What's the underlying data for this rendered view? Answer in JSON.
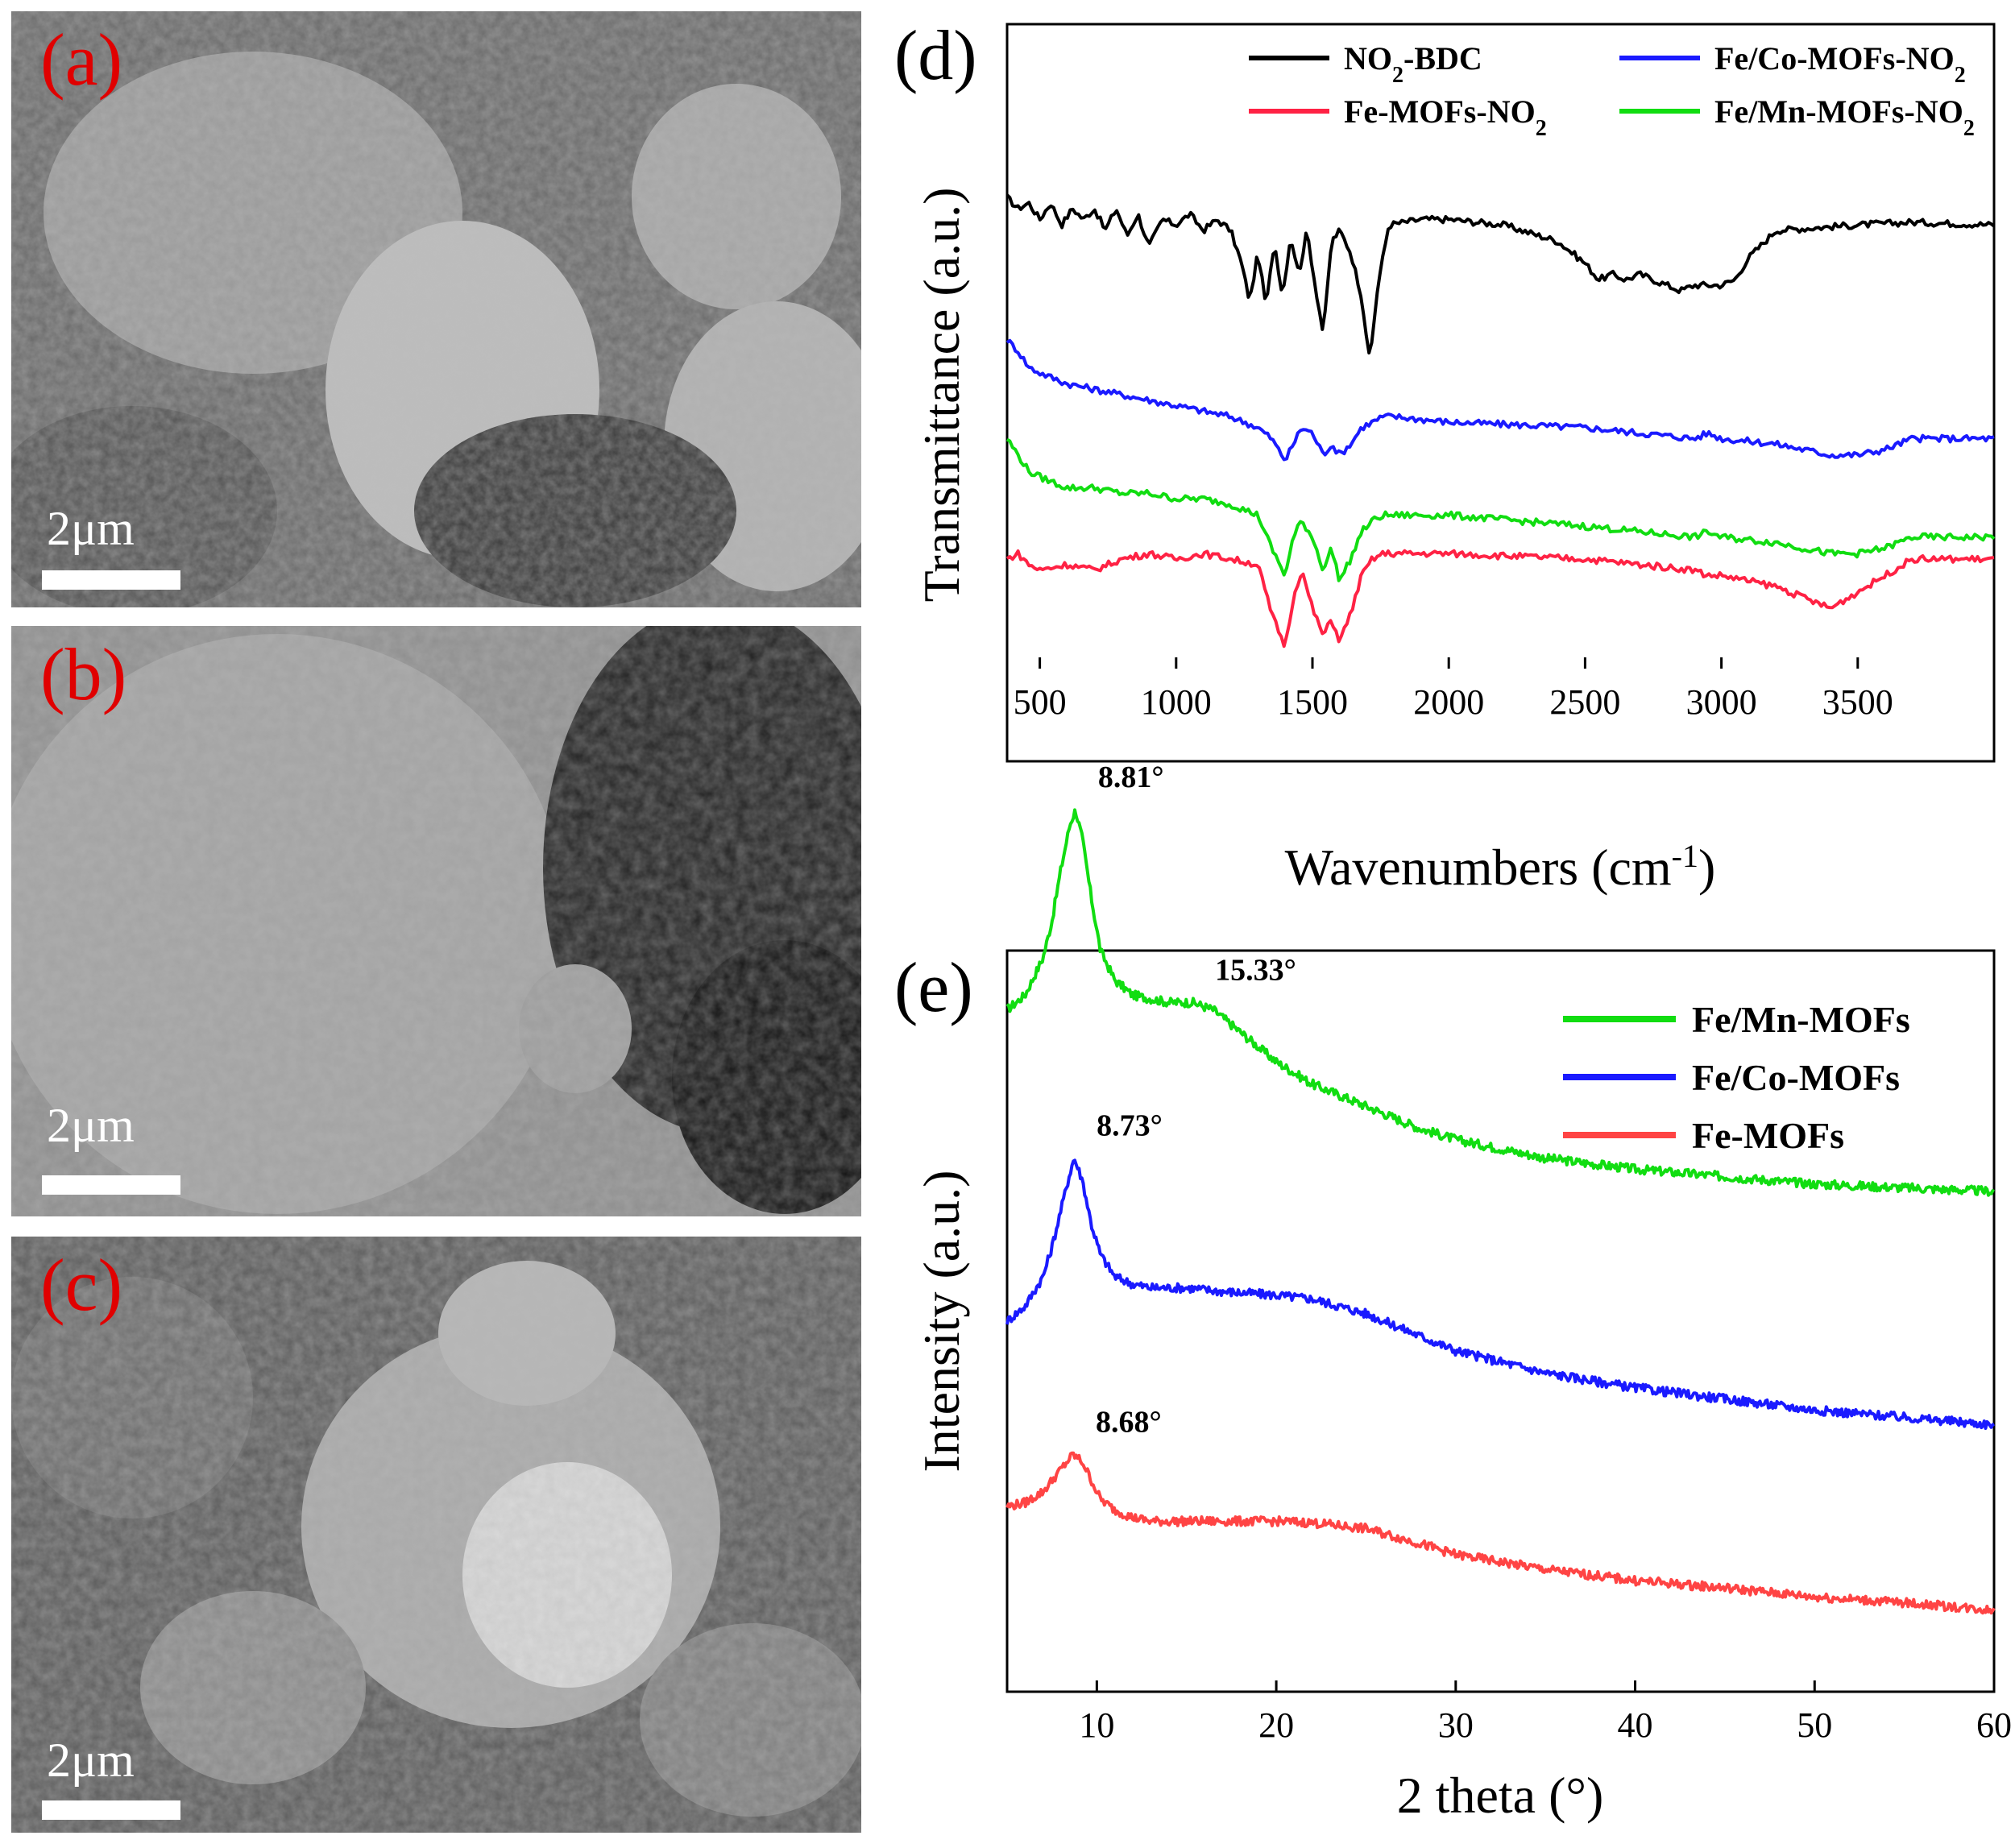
{
  "sem_panels": [
    {
      "label": "(a)",
      "scale_text": "2μm"
    },
    {
      "label": "(b)",
      "scale_text": "2μm"
    },
    {
      "label": "(c)",
      "scale_text": "2μm"
    }
  ],
  "colors": {
    "black": "#000000",
    "blue": "#1a1aff",
    "green": "#11dd11",
    "red": "#ff2244",
    "red_xrd": "#ff4444",
    "label_red": "#e00000"
  },
  "chart_data": [
    {
      "panel_label": "(d)",
      "type": "line",
      "xlabel": "Wavenumbers (cm-1)",
      "ylabel": "Transmittance (a.u.)",
      "xlim": [
        380,
        4000
      ],
      "xticks": [
        500,
        1000,
        1500,
        2000,
        2500,
        3000,
        3500
      ],
      "xtick_labels": [
        "500",
        "1000",
        "1500",
        "2000",
        "2500",
        "3000",
        "3500"
      ],
      "y_ticks_shown": false,
      "legend": [
        {
          "text": "NO2-BDC",
          "parts": [
            "NO",
            "2",
            "-BDC"
          ],
          "color": "#000000"
        },
        {
          "text": "Fe/Co-MOFs-NO2",
          "parts": [
            "Fe/Co-MOFs-NO",
            "2",
            ""
          ],
          "color": "#1a1aff"
        },
        {
          "text": "Fe-MOFs-NO2",
          "parts": [
            "Fe-MOFs-NO",
            "2",
            ""
          ],
          "color": "#ff2244"
        },
        {
          "text": "Fe/Mn-MOFs-NO2",
          "parts": [
            "Fe/Mn-MOFs-NO",
            "2",
            ""
          ],
          "color": "#11dd11"
        }
      ],
      "legend_position": "top",
      "series": [
        {
          "name": "NO2-BDC",
          "color": "#000000",
          "baseline": 0.86,
          "x": [
            380,
            420,
            460,
            500,
            540,
            580,
            620,
            660,
            700,
            740,
            780,
            820,
            860,
            900,
            950,
            1000,
            1050,
            1100,
            1150,
            1200,
            1240,
            1270,
            1300,
            1330,
            1360,
            1390,
            1420,
            1450,
            1480,
            1510,
            1540,
            1570,
            1600,
            1640,
            1680,
            1710,
            1740,
            1780,
            1900,
            2000,
            2200,
            2400,
            2500,
            2550,
            2600,
            2650,
            2700,
            2750,
            2800,
            2850,
            2900,
            3000,
            3050,
            3100,
            3200,
            3500,
            3700,
            4000
          ],
          "y": [
            0.86,
            0.84,
            0.85,
            0.82,
            0.85,
            0.81,
            0.84,
            0.82,
            0.84,
            0.8,
            0.84,
            0.79,
            0.83,
            0.77,
            0.82,
            0.81,
            0.83,
            0.8,
            0.82,
            0.8,
            0.74,
            0.67,
            0.76,
            0.66,
            0.78,
            0.68,
            0.79,
            0.72,
            0.8,
            0.7,
            0.61,
            0.78,
            0.8,
            0.76,
            0.68,
            0.56,
            0.7,
            0.81,
            0.82,
            0.82,
            0.81,
            0.78,
            0.74,
            0.71,
            0.72,
            0.71,
            0.72,
            0.71,
            0.7,
            0.69,
            0.7,
            0.7,
            0.71,
            0.75,
            0.8,
            0.81,
            0.815,
            0.81
          ]
        },
        {
          "name": "Fe/Co-MOFs-NO2",
          "color": "#1a1aff",
          "x": [
            380,
            420,
            460,
            500,
            600,
            700,
            800,
            900,
            1000,
            1100,
            1200,
            1300,
            1350,
            1400,
            1430,
            1460,
            1500,
            1540,
            1570,
            1600,
            1640,
            1680,
            1720,
            1760,
            1800,
            2000,
            2500,
            2900,
            2950,
            3000,
            3200,
            3400,
            3500,
            3600,
            3700,
            4000
          ],
          "y": [
            0.6,
            0.58,
            0.55,
            0.54,
            0.52,
            0.51,
            0.5,
            0.49,
            0.48,
            0.47,
            0.46,
            0.44,
            0.42,
            0.38,
            0.41,
            0.44,
            0.43,
            0.39,
            0.41,
            0.39,
            0.41,
            0.44,
            0.45,
            0.46,
            0.46,
            0.45,
            0.44,
            0.42,
            0.43,
            0.42,
            0.41,
            0.39,
            0.39,
            0.4,
            0.42,
            0.42
          ]
        },
        {
          "name": "Fe/Mn-MOFs-NO2",
          "color": "#11dd11",
          "x": [
            380,
            420,
            460,
            500,
            600,
            700,
            800,
            900,
            1000,
            1100,
            1200,
            1300,
            1350,
            1400,
            1430,
            1460,
            1500,
            1540,
            1570,
            1600,
            1640,
            1680,
            1720,
            1760,
            1800,
            2000,
            2500,
            2900,
            2950,
            3000,
            3200,
            3400,
            3500,
            3600,
            3700,
            4000
          ],
          "y": [
            0.42,
            0.39,
            0.36,
            0.35,
            0.33,
            0.33,
            0.32,
            0.32,
            0.31,
            0.31,
            0.3,
            0.28,
            0.22,
            0.17,
            0.24,
            0.27,
            0.24,
            0.18,
            0.22,
            0.16,
            0.2,
            0.25,
            0.27,
            0.28,
            0.28,
            0.28,
            0.26,
            0.24,
            0.25,
            0.24,
            0.23,
            0.21,
            0.21,
            0.22,
            0.24,
            0.24
          ]
        },
        {
          "name": "Fe-MOFs-NO2",
          "color": "#ff2244",
          "x": [
            380,
            420,
            460,
            500,
            600,
            700,
            800,
            900,
            1000,
            1100,
            1200,
            1300,
            1350,
            1400,
            1430,
            1460,
            1500,
            1540,
            1570,
            1600,
            1640,
            1680,
            1720,
            1760,
            1800,
            2000,
            2500,
            2900,
            2950,
            3000,
            3200,
            3400,
            3500,
            3600,
            3700,
            4000
          ],
          "y": [
            0.2,
            0.21,
            0.19,
            0.18,
            0.19,
            0.18,
            0.2,
            0.21,
            0.2,
            0.21,
            0.2,
            0.19,
            0.1,
            0.04,
            0.13,
            0.18,
            0.11,
            0.06,
            0.09,
            0.05,
            0.1,
            0.17,
            0.2,
            0.21,
            0.21,
            0.21,
            0.2,
            0.18,
            0.17,
            0.17,
            0.15,
            0.11,
            0.14,
            0.17,
            0.2,
            0.2
          ]
        }
      ]
    },
    {
      "panel_label": "(e)",
      "type": "line",
      "xlabel": "2 theta (°)",
      "ylabel": "Intensity (a.u.)",
      "xlim": [
        5,
        60
      ],
      "xticks": [
        10,
        20,
        30,
        40,
        50,
        60
      ],
      "xtick_labels": [
        "10",
        "20",
        "30",
        "40",
        "50",
        "60"
      ],
      "y_ticks_shown": false,
      "legend": [
        {
          "text": "Fe/Mn-MOFs",
          "color": "#11dd11"
        },
        {
          "text": "Fe/Co-MOFs",
          "color": "#1a1aff"
        },
        {
          "text": "Fe-MOFs",
          "color": "#ff4444"
        }
      ],
      "legend_position": "top-right",
      "annotations": [
        {
          "text": "8.81°",
          "x": 8.81,
          "series": "Fe/Mn-MOFs"
        },
        {
          "text": "15.33°",
          "x": 15.33,
          "series": "Fe/Mn-MOFs"
        },
        {
          "text": "8.73°",
          "x": 8.73,
          "series": "Fe/Co-MOFs"
        },
        {
          "text": "8.68°",
          "x": 8.68,
          "series": "Fe-MOFs"
        }
      ],
      "series": [
        {
          "name": "Fe/Mn-MOFs",
          "color": "#11dd11",
          "x": [
            5,
            6,
            7,
            7.5,
            8,
            8.5,
            8.81,
            9.2,
            9.7,
            10.2,
            11,
            12,
            13,
            14,
            15.33,
            16.5,
            18,
            20,
            22,
            25,
            28,
            30,
            35,
            40,
            45,
            50,
            55,
            60
          ],
          "y": [
            0.92,
            0.94,
            0.99,
            1.04,
            1.11,
            1.17,
            1.19,
            1.15,
            1.07,
            1.0,
            0.96,
            0.94,
            0.935,
            0.93,
            0.93,
            0.92,
            0.89,
            0.85,
            0.82,
            0.79,
            0.76,
            0.745,
            0.72,
            0.705,
            0.695,
            0.685,
            0.68,
            0.675
          ]
        },
        {
          "name": "Fe/Co-MOFs",
          "color": "#1a1aff",
          "x": [
            5,
            6,
            7,
            7.5,
            8,
            8.5,
            8.73,
            9.2,
            9.7,
            10.2,
            11,
            12,
            13,
            15,
            17,
            20,
            22,
            25,
            28,
            30,
            35,
            40,
            45,
            50,
            55,
            60
          ],
          "y": [
            0.5,
            0.52,
            0.56,
            0.6,
            0.65,
            0.7,
            0.72,
            0.69,
            0.63,
            0.59,
            0.56,
            0.55,
            0.545,
            0.545,
            0.54,
            0.535,
            0.53,
            0.51,
            0.48,
            0.46,
            0.43,
            0.41,
            0.395,
            0.38,
            0.37,
            0.36
          ]
        },
        {
          "name": "Fe-MOFs",
          "color": "#ff4444",
          "x": [
            5,
            6,
            7,
            7.5,
            8,
            8.5,
            8.68,
            9.2,
            9.7,
            10.2,
            11,
            12,
            13,
            15,
            17,
            20,
            22,
            25,
            28,
            30,
            35,
            40,
            45,
            50,
            55,
            60
          ],
          "y": [
            0.25,
            0.255,
            0.27,
            0.285,
            0.3,
            0.315,
            0.32,
            0.31,
            0.285,
            0.26,
            0.245,
            0.235,
            0.23,
            0.23,
            0.23,
            0.23,
            0.228,
            0.22,
            0.2,
            0.185,
            0.165,
            0.15,
            0.14,
            0.128,
            0.12,
            0.11
          ]
        }
      ]
    }
  ]
}
